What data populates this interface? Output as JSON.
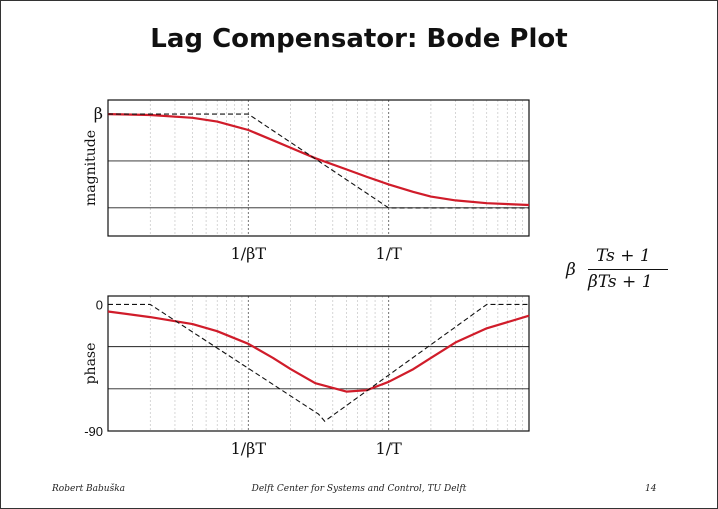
{
  "slide": {
    "title": "Lag Compensator: Bode Plot",
    "formula": {
      "prefix": "β",
      "numerator": "Ts + 1",
      "denominator": "βTs + 1"
    },
    "footer": {
      "author": "Robert Babuška",
      "center": "Delft Center for Systems and Control, TU Delft",
      "page": "14"
    }
  },
  "chart_data": [
    {
      "type": "line",
      "title": "",
      "xlabel": "",
      "ylabel": "magnitude",
      "x_scale": "log",
      "x_ticks": [
        {
          "label": "1/βT",
          "value": 0.1
        },
        {
          "label": "1/T",
          "value": 1
        }
      ],
      "x_range": [
        0.01,
        10
      ],
      "y_ticks": [
        {
          "label": "β",
          "value": 1
        }
      ],
      "grid": true,
      "series": [
        {
          "style": "solid",
          "color": "#d01c2a",
          "x": [
            0.01,
            0.02,
            0.04,
            0.06,
            0.1,
            0.15,
            0.2,
            0.3,
            0.5,
            0.7,
            1,
            1.5,
            2,
            3,
            5,
            10
          ],
          "y": [
            1.0,
            0.99,
            0.96,
            0.92,
            0.83,
            0.72,
            0.64,
            0.53,
            0.41,
            0.33,
            0.25,
            0.17,
            0.12,
            0.08,
            0.05,
            0.03
          ]
        },
        {
          "style": "dashed",
          "color": "#111111",
          "x": [
            0.01,
            0.1,
            1,
            10
          ],
          "y": [
            1.0,
            1.0,
            0.0,
            0.0
          ]
        }
      ]
    },
    {
      "type": "line",
      "title": "",
      "xlabel": "",
      "ylabel": "phase",
      "x_scale": "log",
      "x_ticks": [
        {
          "label": "1/βT",
          "value": 0.1
        },
        {
          "label": "1/T",
          "value": 1
        }
      ],
      "x_range": [
        0.01,
        10
      ],
      "y_ticks": [
        {
          "label": "0",
          "value": 0
        },
        {
          "label": "-90",
          "value": -90
        }
      ],
      "grid": true,
      "series": [
        {
          "style": "solid",
          "color": "#d01c2a",
          "x": [
            0.01,
            0.02,
            0.04,
            0.06,
            0.1,
            0.15,
            0.2,
            0.3,
            0.5,
            0.7,
            1,
            1.5,
            2,
            3,
            5,
            10
          ],
          "y": [
            -5,
            -9,
            -14,
            -19,
            -28,
            -38,
            -46,
            -56,
            -62,
            -61,
            -55,
            -46,
            -38,
            -27,
            -17,
            -8
          ]
        },
        {
          "style": "dashed",
          "color": "#111111",
          "x": [
            0.01,
            0.02,
            0.316,
            0.35,
            5,
            10
          ],
          "y": [
            0,
            0,
            -78,
            -83,
            0,
            0
          ]
        }
      ]
    }
  ]
}
